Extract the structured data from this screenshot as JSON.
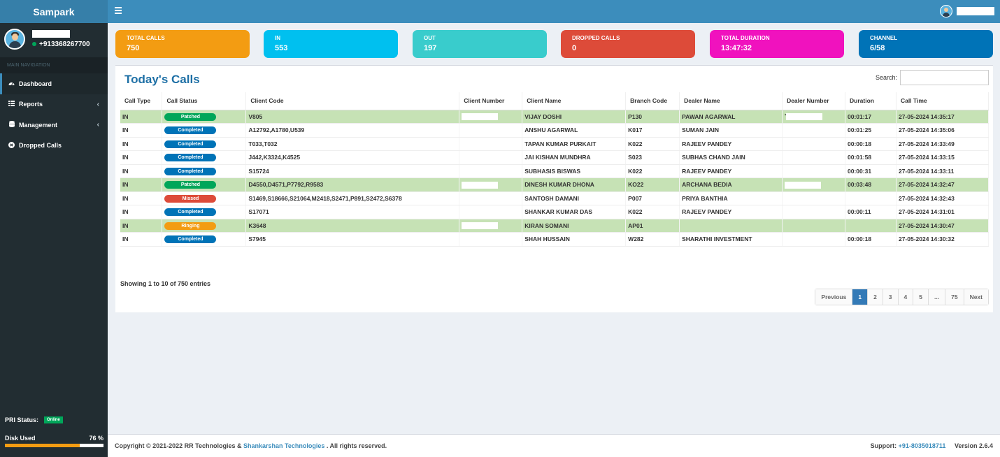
{
  "app": {
    "brand": "Sampark"
  },
  "user": {
    "phone": "+913368267700"
  },
  "nav": {
    "header": "MAIN NAVIGATION",
    "items": [
      {
        "label": "Dashboard",
        "icon": "dashboard-icon",
        "active": true
      },
      {
        "label": "Reports",
        "icon": "list-icon",
        "has_children": true
      },
      {
        "label": "Management",
        "icon": "database-icon",
        "has_children": true
      },
      {
        "label": "Dropped Calls",
        "icon": "times-circle-icon"
      }
    ]
  },
  "status": {
    "pri_label": "PRI Status:",
    "pri_value": "Online",
    "disk_label": "Disk Used",
    "disk_value": "76 %",
    "disk_fraction": 0.76
  },
  "stats": [
    {
      "label": "TOTAL CALLS",
      "value": "750",
      "color": "#f39c12"
    },
    {
      "label": "IN",
      "value": "553",
      "color": "#00c0ef"
    },
    {
      "label": "OUT",
      "value": "197",
      "color": "#39cccc"
    },
    {
      "label": "DROPPED CALLS",
      "value": "0",
      "color": "#dd4b39"
    },
    {
      "label": "TOTAL DURATION",
      "value": "13:47:32",
      "color": "#f012be"
    },
    {
      "label": "CHANNEL",
      "value": "6/58",
      "color": "#0073b7"
    }
  ],
  "calls": {
    "title": "Today's Calls",
    "search_label": "Search:",
    "columns": [
      "Call Type",
      "Call Status",
      "Client Code",
      "Client Number",
      "Client Name",
      "Branch Code",
      "Dealer Name",
      "Dealer Number",
      "Duration",
      "Call Time"
    ],
    "rows": [
      {
        "type": "IN",
        "status": "Patched",
        "status_class": "patched",
        "client_code": "V805",
        "client_redacted": true,
        "client_name": "VIJAY DOSHI",
        "branch": "P130",
        "dealer": "PAWAN AGARWAL",
        "dealer_redacted": true,
        "dealer_prefix": "'",
        "duration": "00:01:17",
        "time": "27-05-2024 14:35:17",
        "highlight": true
      },
      {
        "type": "IN",
        "status": "Completed",
        "status_class": "completed",
        "client_code": "A12792,A1780,U539",
        "client_redacted": false,
        "client_name": "ANSHU AGARWAL",
        "branch": "K017",
        "dealer": "SUMAN JAIN",
        "dealer_redacted": false,
        "duration": "00:01:25",
        "time": "27-05-2024 14:35:06",
        "highlight": false
      },
      {
        "type": "IN",
        "status": "Completed",
        "status_class": "completed",
        "client_code": "T033,T032",
        "client_redacted": false,
        "client_name": "TAPAN KUMAR PURKAIT",
        "branch": "K022",
        "dealer": "RAJEEV PANDEY",
        "dealer_redacted": false,
        "duration": "00:00:18",
        "time": "27-05-2024 14:33:49",
        "highlight": false
      },
      {
        "type": "IN",
        "status": "Completed",
        "status_class": "completed",
        "client_code": "J442,K3324,K4525",
        "client_redacted": false,
        "client_name": "JAI KISHAN MUNDHRA",
        "branch": "S023",
        "dealer": "SUBHAS CHAND JAIN",
        "dealer_redacted": false,
        "duration": "00:01:58",
        "time": "27-05-2024 14:33:15",
        "highlight": false
      },
      {
        "type": "IN",
        "status": "Completed",
        "status_class": "completed",
        "client_code": "S15724",
        "client_redacted": false,
        "client_name": "SUBHASIS BISWAS",
        "branch": "K022",
        "dealer": "RAJEEV PANDEY",
        "dealer_redacted": false,
        "duration": "00:00:31",
        "time": "27-05-2024 14:33:11",
        "highlight": false
      },
      {
        "type": "IN",
        "status": "Patched",
        "status_class": "patched",
        "client_code": "D4550,D4571,P7792,R9583",
        "client_redacted": true,
        "client_name": "DINESH KUMAR DHONA",
        "branch": "KO22",
        "dealer": "ARCHANA BEDIA",
        "dealer_redacted": true,
        "duration": "00:03:48",
        "time": "27-05-2024 14:32:47",
        "highlight": true
      },
      {
        "type": "IN",
        "status": "Missed",
        "status_class": "missed",
        "client_code": "S1469,S18666,S21064,M2418,S2471,P891,S2472,S6378",
        "client_redacted": false,
        "client_name": "SANTOSH DAMANI",
        "branch": "P007",
        "dealer": "PRIYA BANTHIA",
        "dealer_redacted": false,
        "duration": "",
        "time": "27-05-2024 14:32:43",
        "highlight": false
      },
      {
        "type": "IN",
        "status": "Completed",
        "status_class": "completed",
        "client_code": "S17071",
        "client_redacted": false,
        "client_name": "SHANKAR KUMAR DAS",
        "branch": "K022",
        "dealer": "RAJEEV PANDEY",
        "dealer_redacted": false,
        "duration": "00:00:11",
        "time": "27-05-2024 14:31:01",
        "highlight": false
      },
      {
        "type": "IN",
        "status": "Ringing",
        "status_class": "ringing",
        "client_code": "K3648",
        "client_redacted": true,
        "client_name": "KIRAN SOMANI",
        "branch": "AP01",
        "dealer": "",
        "dealer_redacted": false,
        "duration": "",
        "time": "27-05-2024 14:30:47",
        "highlight": true
      },
      {
        "type": "IN",
        "status": "Completed",
        "status_class": "completed",
        "client_code": "S7945",
        "client_redacted": false,
        "client_name": "SHAH HUSSAIN",
        "branch": "W282",
        "dealer": "SHARATHI INVESTMENT",
        "dealer_redacted": false,
        "duration": "00:00:18",
        "time": "27-05-2024 14:30:32",
        "highlight": false
      }
    ],
    "showing": "Showing 1 to 10 of 750 entries",
    "pagination": [
      "Previous",
      "1",
      "2",
      "3",
      "4",
      "5",
      "...",
      "75",
      "Next"
    ],
    "active_page": "1"
  },
  "footer": {
    "copyright_prefix": "Copyright © 2021-2022 RR Technologies & ",
    "company_link": "Shankarshan Technologies",
    "copyright_suffix": " . All rights reserved.",
    "support_label": "Support: ",
    "support_phone": "+91-8035018711",
    "version": "Version 2.6.4"
  }
}
